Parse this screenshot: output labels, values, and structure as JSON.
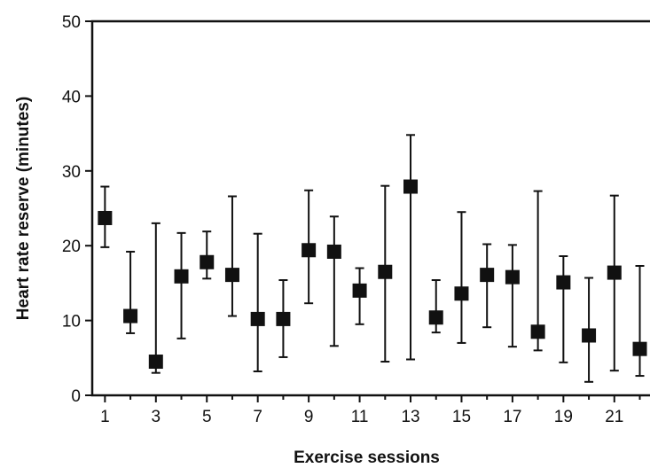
{
  "chart_data": {
    "type": "scatter",
    "title": "",
    "xlabel": "Exercise sessions",
    "ylabel": "Heart rate reserve (minutes)",
    "xlim": [
      0.5,
      22.4
    ],
    "ylim": [
      0,
      50
    ],
    "x_ticks": [
      1,
      3,
      5,
      7,
      9,
      11,
      13,
      15,
      17,
      19,
      21
    ],
    "y_ticks": [
      0,
      10,
      20,
      30,
      40,
      50
    ],
    "grid": false,
    "legend": "none",
    "colors": {
      "marker": "#111111",
      "axis": "#111111",
      "errorbar": "#111111"
    },
    "series": [
      {
        "x": [
          1,
          2,
          3,
          4,
          5,
          6,
          7,
          8,
          9,
          10,
          11,
          12,
          13,
          14,
          15,
          16,
          17,
          18,
          19,
          20,
          21,
          22
        ],
        "y": [
          23.7,
          10.6,
          4.5,
          15.9,
          17.8,
          16.1,
          10.2,
          10.2,
          19.4,
          19.2,
          14.0,
          16.5,
          27.9,
          10.4,
          13.6,
          16.1,
          15.8,
          8.5,
          15.1,
          8.0,
          16.4,
          6.2
        ],
        "low": [
          19.8,
          8.3,
          3.0,
          7.6,
          15.6,
          10.6,
          3.2,
          5.1,
          12.3,
          6.6,
          9.5,
          4.5,
          4.8,
          8.4,
          7.0,
          9.1,
          6.5,
          6.0,
          4.4,
          1.8,
          3.3,
          2.6
        ],
        "high": [
          27.9,
          19.2,
          23.0,
          21.7,
          21.9,
          26.6,
          21.6,
          15.4,
          27.4,
          23.9,
          17.0,
          28.0,
          34.8,
          15.4,
          24.5,
          20.2,
          20.1,
          27.3,
          18.6,
          15.7,
          26.7,
          17.3
        ]
      }
    ]
  }
}
